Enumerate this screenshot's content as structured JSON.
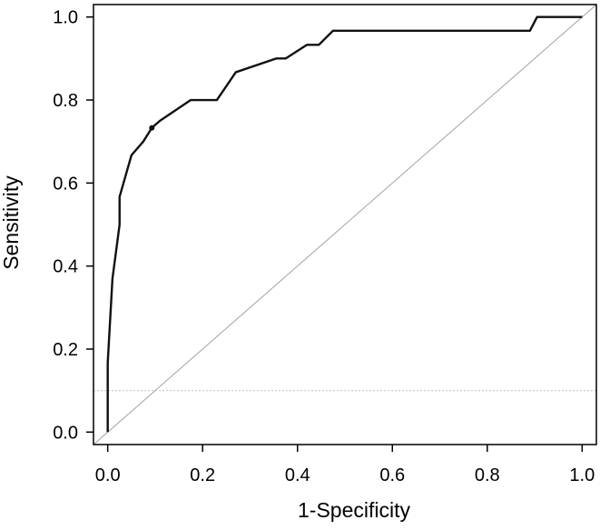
{
  "chart_data": {
    "type": "line",
    "xlabel": "1-Specificity",
    "ylabel": "Sensitivity",
    "xlim": [
      -0.03,
      1.03
    ],
    "ylim": [
      -0.03,
      1.03
    ],
    "x_ticks": [
      "0.0",
      "0.2",
      "0.4",
      "0.6",
      "0.8",
      "1.0"
    ],
    "y_ticks": [
      "0.0",
      "0.2",
      "0.4",
      "0.6",
      "0.8",
      "1.0"
    ],
    "grid": false,
    "legend": "none",
    "series": [
      {
        "style": "solid",
        "color": "#111111",
        "x": [
          0.0,
          0.0,
          0.01,
          0.025,
          0.025,
          0.05,
          0.075,
          0.093,
          0.11,
          0.175,
          0.23,
          0.27,
          0.355,
          0.375,
          0.42,
          0.445,
          0.475,
          0.89,
          0.905,
          1.0
        ],
        "y": [
          0.0,
          0.167,
          0.37,
          0.5,
          0.567,
          0.667,
          0.7,
          0.733,
          0.75,
          0.8,
          0.8,
          0.867,
          0.9,
          0.9,
          0.933,
          0.933,
          0.967,
          0.967,
          1.0,
          1.0
        ]
      },
      {
        "style": "solid",
        "color": "#b0b0b0",
        "x": [
          -0.03,
          1.03
        ],
        "y": [
          -0.03,
          1.03
        ]
      },
      {
        "style": "dotted",
        "color": "#cfcfcf",
        "x": [
          -0.03,
          1.03
        ],
        "y": [
          0.1,
          0.1
        ]
      }
    ],
    "marker": {
      "x": 0.093,
      "y": 0.733
    }
  }
}
